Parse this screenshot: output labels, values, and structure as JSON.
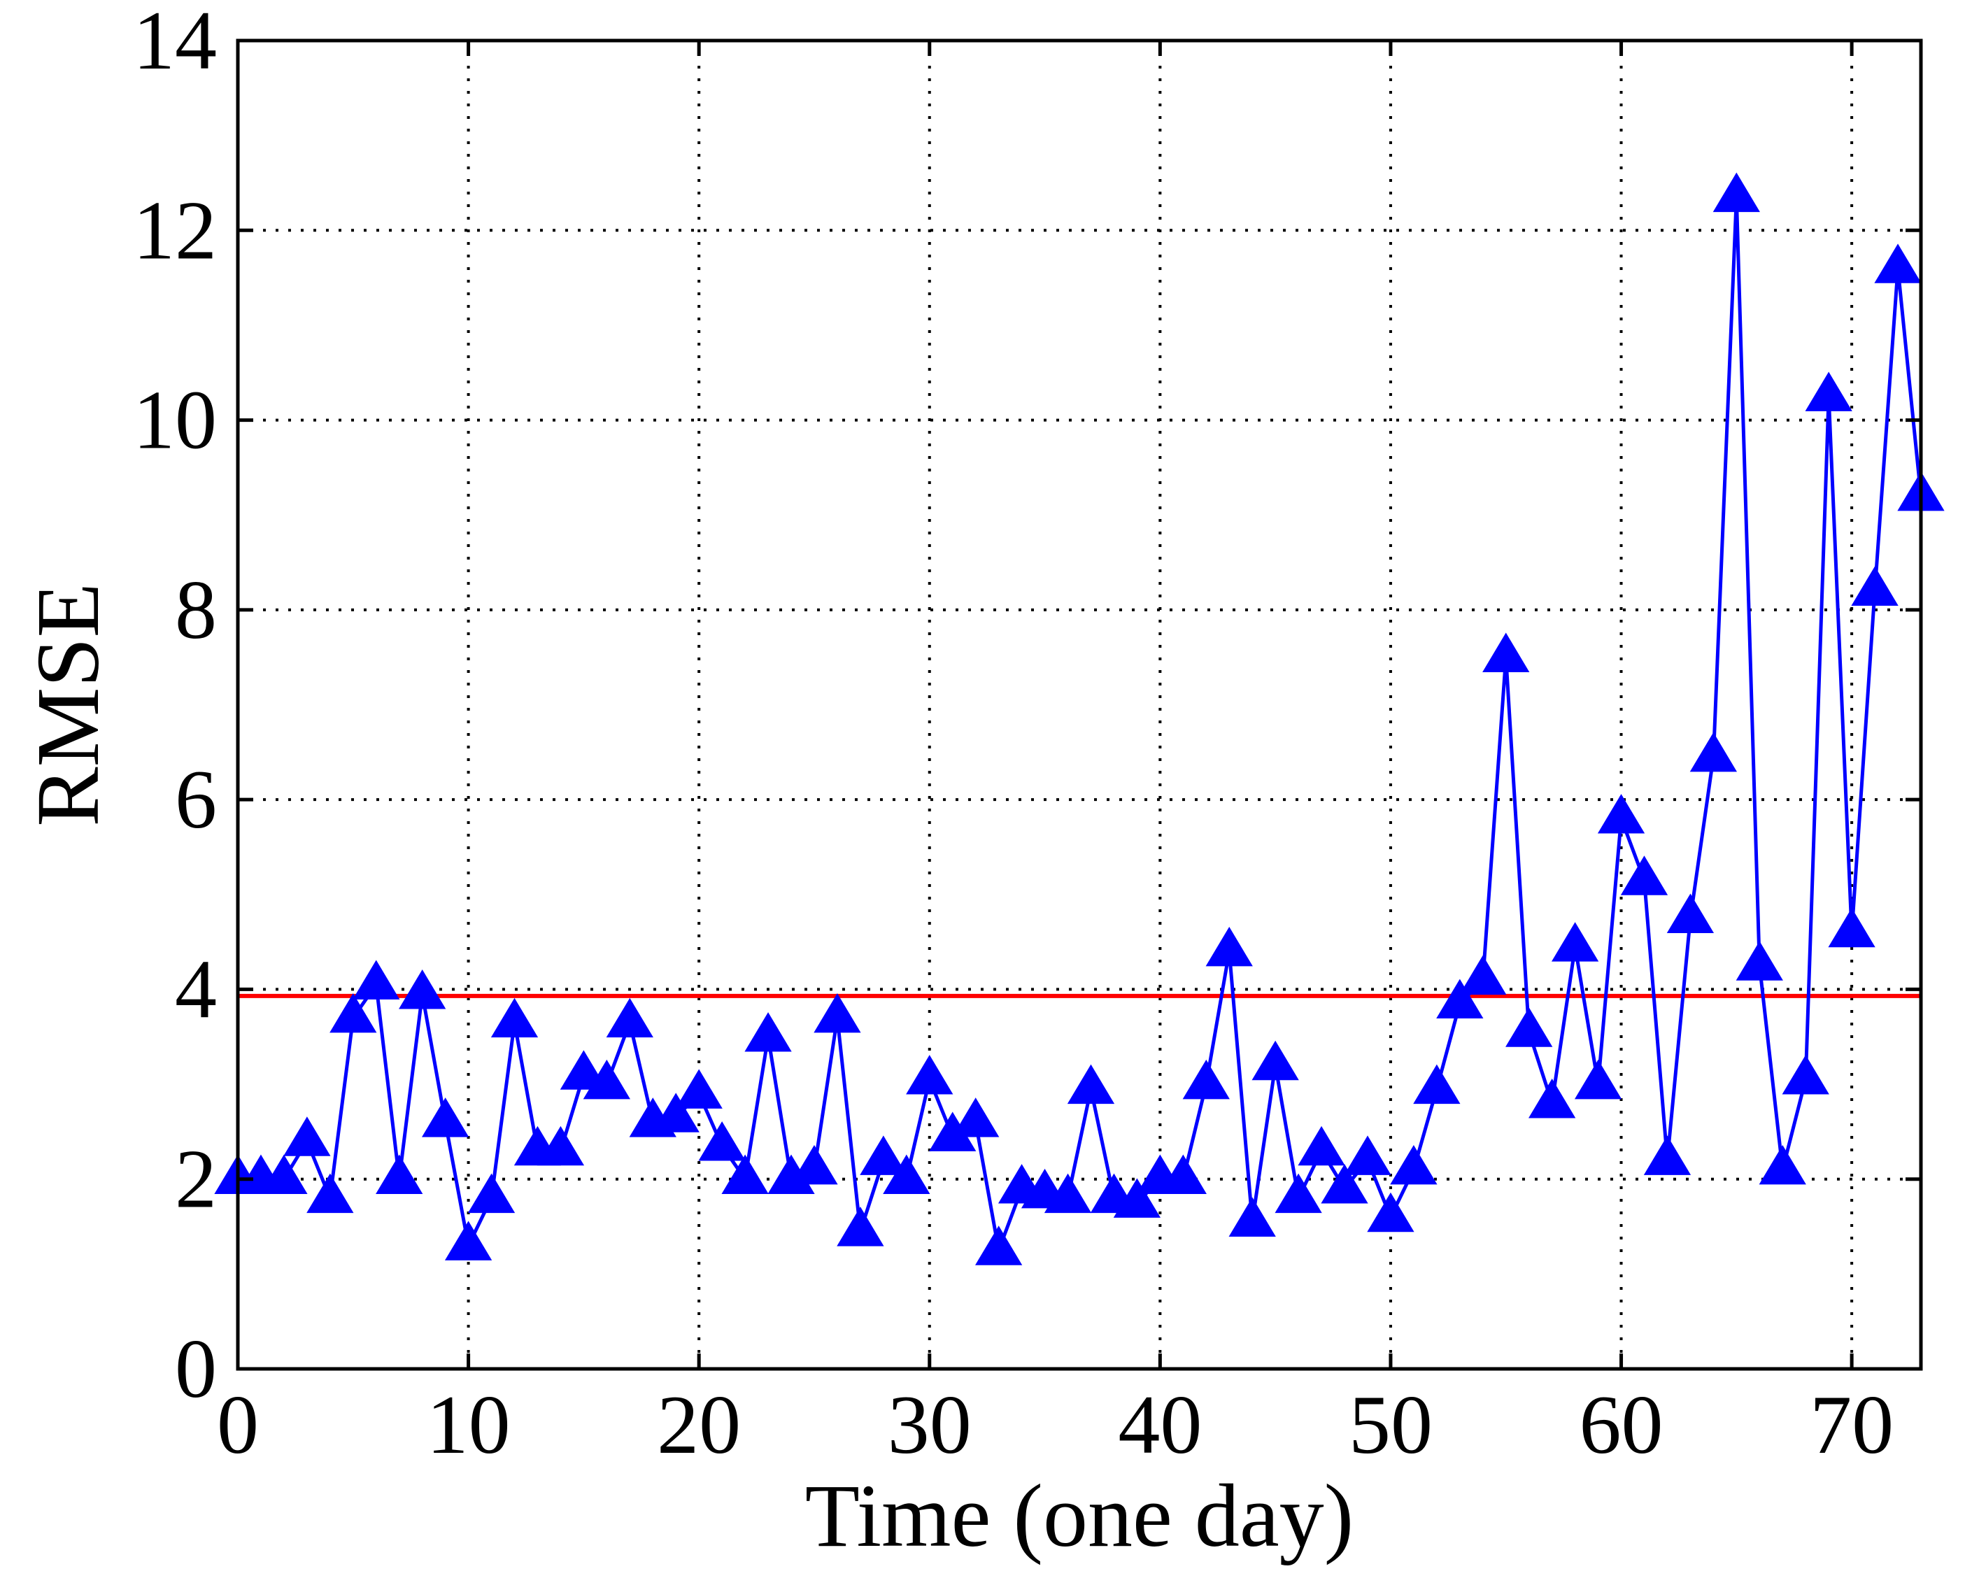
{
  "chart_data": {
    "type": "line",
    "title": "",
    "xlabel": "Time (one day)",
    "ylabel": "RMSE",
    "xlim": [
      0,
      73
    ],
    "ylim": [
      0,
      14
    ],
    "xticks": [
      0,
      10,
      20,
      30,
      40,
      50,
      60,
      70
    ],
    "yticks": [
      0,
      2,
      4,
      6,
      8,
      10,
      12,
      14
    ],
    "grid": true,
    "series": [
      {
        "name": "RMSE",
        "color": "#0000ff",
        "marker": "triangle",
        "x": [
          0,
          1,
          2,
          3,
          4,
          5,
          6,
          7,
          8,
          9,
          10,
          11,
          12,
          13,
          14,
          15,
          16,
          17,
          18,
          19,
          20,
          21,
          22,
          23,
          24,
          25,
          26,
          27,
          28,
          29,
          30,
          31,
          32,
          33,
          34,
          35,
          36,
          37,
          38,
          39,
          40,
          41,
          42,
          43,
          44,
          45,
          46,
          47,
          48,
          49,
          50,
          51,
          52,
          53,
          54,
          55,
          56,
          57,
          58,
          59,
          60,
          61,
          62,
          63,
          64,
          65,
          66,
          67,
          68,
          69,
          70,
          71,
          72,
          73
        ],
        "y": [
          2.0,
          2.0,
          2.0,
          2.4,
          1.8,
          3.7,
          4.05,
          2.0,
          3.95,
          2.6,
          1.3,
          1.8,
          3.65,
          2.3,
          2.3,
          3.1,
          3.0,
          3.65,
          2.6,
          2.65,
          2.9,
          2.35,
          2.0,
          3.5,
          2.0,
          2.1,
          3.7,
          1.45,
          2.2,
          2.0,
          3.05,
          2.45,
          2.6,
          1.25,
          1.9,
          1.85,
          1.8,
          2.95,
          1.8,
          1.75,
          2.0,
          2.0,
          3.0,
          4.4,
          1.55,
          3.2,
          1.8,
          2.3,
          1.9,
          2.2,
          1.6,
          2.1,
          2.95,
          3.85,
          4.1,
          7.5,
          3.55,
          2.8,
          4.45,
          3.0,
          5.8,
          5.15,
          2.2,
          4.75,
          6.45,
          12.35,
          4.25,
          2.1,
          3.05,
          10.25,
          4.6,
          8.2,
          11.6,
          9.2
        ]
      }
    ],
    "threshold": {
      "name": "threshold",
      "y": 3.93,
      "color": "#ff0000"
    }
  }
}
